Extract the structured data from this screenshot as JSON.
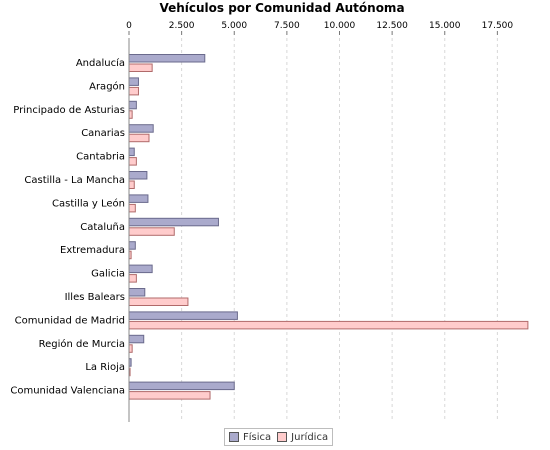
{
  "chart_data": {
    "type": "bar",
    "orientation": "horizontal",
    "title": "Vehículos por Comunidad Autónoma",
    "xlabel": "",
    "ylabel": "",
    "xlim": [
      0,
      19000
    ],
    "x_ticks": [
      "0",
      "2.500",
      "5.000",
      "7.500",
      "10.000",
      "12.500",
      "15.000",
      "17.500"
    ],
    "x_tick_values": [
      0,
      2500,
      5000,
      7500,
      10000,
      12500,
      15000,
      17500
    ],
    "grid": "vertical dashed",
    "legend_position": "bottom",
    "categories": [
      "Andalucía",
      "Aragón",
      "Principado de Asturias",
      "Canarias",
      "Cantabria",
      "Castilla - La Mancha",
      "Castilla y León",
      "Cataluña",
      "Extremadura",
      "Galicia",
      "Illes Balears",
      "Comunidad de Madrid",
      "Región de Murcia",
      "La Rioja",
      "Comunidad Valenciana"
    ],
    "series": [
      {
        "name": "Física",
        "color": "#aaaacc",
        "values": [
          3600,
          450,
          350,
          1150,
          250,
          850,
          900,
          4250,
          300,
          1100,
          750,
          5150,
          700,
          100,
          5000
        ]
      },
      {
        "name": "Jurídica",
        "color": "#ffcccc",
        "values": [
          1100,
          450,
          150,
          950,
          350,
          250,
          300,
          2150,
          100,
          350,
          2800,
          18950,
          150,
          50,
          3850
        ]
      }
    ]
  }
}
